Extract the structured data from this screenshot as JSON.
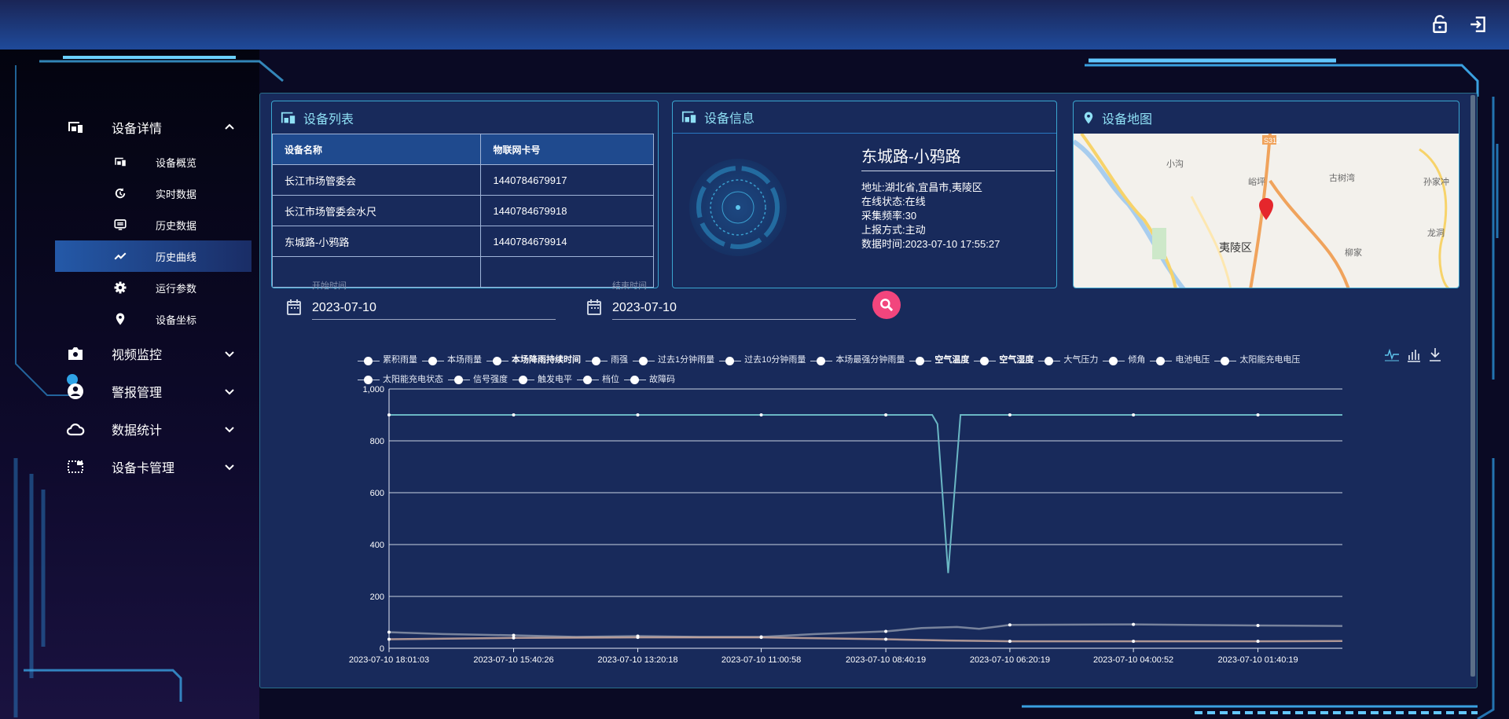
{
  "header": {
    "lock_icon": "lock-open-icon",
    "logout_icon": "logout-icon"
  },
  "sidebar": {
    "groups": [
      {
        "label": "设备详情",
        "icon": "device-icon",
        "expanded": true,
        "items": [
          {
            "label": "设备概览",
            "icon": "device-icon"
          },
          {
            "label": "实时数据",
            "icon": "refresh-clock-icon"
          },
          {
            "label": "历史数据",
            "icon": "monitor-list-icon"
          },
          {
            "label": "历史曲线",
            "icon": "trend-line-icon",
            "active": true
          },
          {
            "label": "运行参数",
            "icon": "gear-icon"
          },
          {
            "label": "设备坐标",
            "icon": "map-pin-icon"
          }
        ]
      },
      {
        "label": "视频监控",
        "icon": "camera-icon"
      },
      {
        "label": "警报管理",
        "icon": "user-circle-icon"
      },
      {
        "label": "数据统计",
        "icon": "cloud-icon"
      },
      {
        "label": "设备卡管理",
        "icon": "card-icon"
      }
    ]
  },
  "device_list": {
    "title": "设备列表",
    "columns": [
      "设备名称",
      "物联网卡号"
    ],
    "rows": [
      [
        "长江市场管委会",
        "1440784679917"
      ],
      [
        "长江市场管委会水尺",
        "1440784679918"
      ],
      [
        "东城路-小鸦路",
        "1440784679914"
      ]
    ]
  },
  "device_info": {
    "title": "设备信息",
    "name": "东城路-小鸦路",
    "lines": [
      "地址:湖北省,宜昌市,夷陵区",
      "在线状态:在线",
      "采集频率:30",
      "上报方式:主动",
      "数据时间:2023-07-10 17:55:27"
    ]
  },
  "device_map": {
    "title": "设备地图",
    "labels": [
      "S312",
      "小沟",
      "峪坪",
      "古树湾",
      "孙家冲",
      "夷陵区",
      "柳家",
      "龙洞"
    ]
  },
  "filters": {
    "start_label": "开始时间",
    "start_value": "2023-07-10",
    "end_label": "结束时间",
    "end_value": "2023-07-10"
  },
  "legend": [
    {
      "label": "累积雨量"
    },
    {
      "label": "本场雨量"
    },
    {
      "label": "本场降雨持续时间",
      "bold": true
    },
    {
      "label": "雨强"
    },
    {
      "label": "过去1分钟雨量"
    },
    {
      "label": "过去10分钟雨量"
    },
    {
      "label": "本场最强分钟雨量"
    },
    {
      "label": "空气温度",
      "bold": true
    },
    {
      "label": "空气湿度",
      "bold": true
    },
    {
      "label": "大气压力"
    },
    {
      "label": "倾角"
    },
    {
      "label": "电池电压"
    },
    {
      "label": "太阳能充电电压"
    },
    {
      "label": "太阳能充电状态"
    },
    {
      "label": "信号强度"
    },
    {
      "label": "触发电平"
    },
    {
      "label": "档位"
    },
    {
      "label": "故障码"
    }
  ],
  "toolbar": {
    "icons": [
      "line-chart-icon",
      "bar-chart-icon",
      "download-icon"
    ]
  },
  "chart_data": {
    "type": "line",
    "xlim": [
      "2023-07-10 18:01:03",
      "2023-07-10 00:05:00"
    ],
    "x_ticks": [
      "2023-07-10 18:01:03",
      "2023-07-10 15:40:26",
      "2023-07-10 13:20:18",
      "2023-07-10 11:00:58",
      "2023-07-10 08:40:19",
      "2023-07-10 06:20:19",
      "2023-07-10 04:00:52",
      "2023-07-10 01:40:19"
    ],
    "ylim": [
      0,
      1000
    ],
    "y_ticks": [
      "0",
      "200",
      "400",
      "600",
      "800",
      "1,000"
    ],
    "grid": true,
    "series": [
      {
        "color": "#6ab7c4",
        "points": [
          [
            "18:01:03",
            900
          ],
          [
            "15:40:26",
            900
          ],
          [
            "13:20:18",
            900
          ],
          [
            "11:00:58",
            900
          ],
          [
            "08:40:19",
            900
          ],
          [
            "07:48:00",
            900
          ],
          [
            "07:42:00",
            865
          ],
          [
            "07:30:00",
            290
          ],
          [
            "07:16:00",
            900
          ],
          [
            "06:20:19",
            900
          ],
          [
            "04:00:52",
            900
          ],
          [
            "01:40:19",
            900
          ],
          [
            "00:05:00",
            900
          ]
        ]
      },
      {
        "color": "#8a93a8",
        "points": [
          [
            "18:01:03",
            62
          ],
          [
            "17:00:00",
            55
          ],
          [
            "15:40:26",
            50
          ],
          [
            "14:30:00",
            44
          ],
          [
            "13:20:18",
            47
          ],
          [
            "12:10:00",
            44
          ],
          [
            "11:00:58",
            44
          ],
          [
            "10:00:00",
            55
          ],
          [
            "08:40:19",
            65
          ],
          [
            "08:00:00",
            78
          ],
          [
            "07:20:00",
            82
          ],
          [
            "06:55:00",
            75
          ],
          [
            "06:20:19",
            90
          ],
          [
            "04:00:52",
            92
          ],
          [
            "01:40:19",
            88
          ],
          [
            "00:05:00",
            86
          ]
        ]
      },
      {
        "color": "#c9a9a0",
        "points": [
          [
            "18:01:03",
            35
          ],
          [
            "15:40:26",
            40
          ],
          [
            "13:20:18",
            42
          ],
          [
            "11:00:58",
            42
          ],
          [
            "08:40:19",
            35
          ],
          [
            "07:30:00",
            30
          ],
          [
            "06:20:19",
            27
          ],
          [
            "04:00:52",
            27
          ],
          [
            "01:40:19",
            27
          ],
          [
            "00:05:00",
            28
          ]
        ]
      }
    ]
  }
}
